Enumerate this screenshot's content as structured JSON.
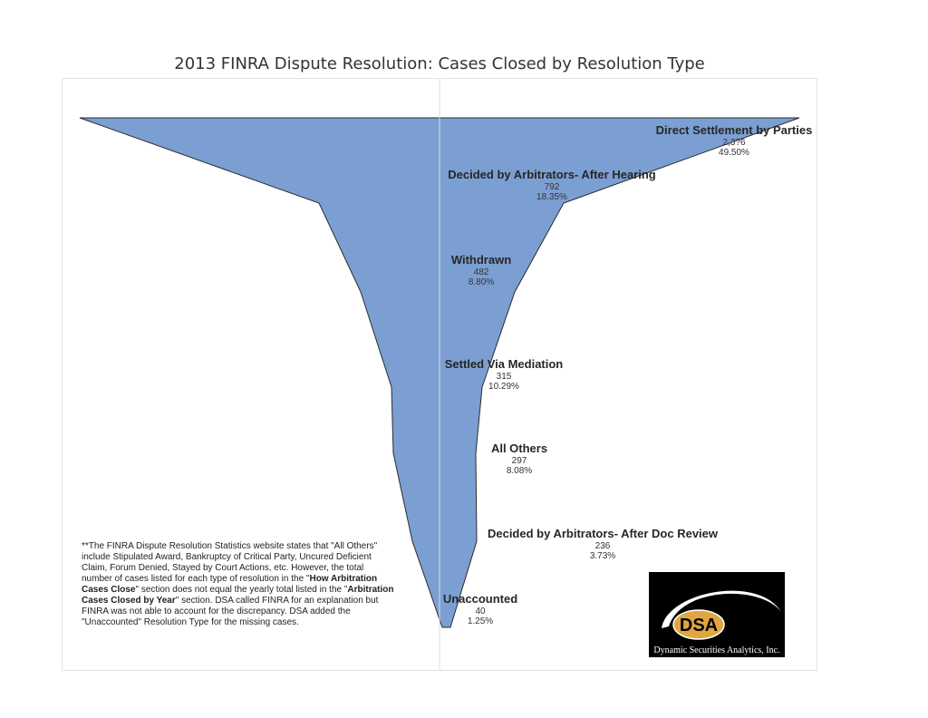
{
  "chart_data": {
    "type": "funnel",
    "title": "2013 FINRA Dispute Resolution: Cases Closed by Resolution Type",
    "stages": [
      {
        "name": "Direct Settlement by Parties",
        "count": "2,3?6",
        "percent": "49.50%",
        "share": 49.5
      },
      {
        "name": "Decided by Arbitrators- After Hearing",
        "count": "792",
        "percent": "18.35%",
        "share": 18.35
      },
      {
        "name": "Withdrawn",
        "count": "482",
        "percent": "8.80%",
        "share": 8.8
      },
      {
        "name": "Settled Via Mediation",
        "count": "315",
        "percent": "10.29%",
        "share": 10.29
      },
      {
        "name": "All Others",
        "count": "297",
        "percent": "8.08%",
        "share": 8.08
      },
      {
        "name": "Decided by Arbitrators- After Doc Review",
        "count": "236",
        "percent": "3.73%",
        "share": 3.73
      },
      {
        "name": "Unaccounted",
        "count": "40",
        "percent": "1.25%",
        "share": 1.25
      }
    ],
    "grid": false,
    "legend": "none",
    "fill_color": "#7b9fd2",
    "edge_color": "#2b2b2b"
  },
  "footnote": {
    "p1": "**The FINRA Dispute Resolution Statistics website states that \"All Others\" include Stipulated Award, Bankruptcy of Critical Party, Uncured Deficient Claim, Forum Denied, Stayed by Court Actions, etc. However, the total number of cases listed for each type of resolution in the \"",
    "b1": "How Arbitration Cases Close",
    "p2": "\" section does not equal the yearly total listed in the \"",
    "b2": "Arbitration Cases Closed by Year",
    "p3": "\" section. DSA called FINRA for an explanation but FINRA was not able to account for the discrepancy. DSA added the \"Unaccounted\" Resolution Type for the missing cases."
  },
  "logo": {
    "mark": "DSA",
    "name": "Dynamic Securities Analytics, Inc.",
    "colors": {
      "background": "#000000",
      "badge": "#e0a640",
      "ring": "#ffffff"
    }
  }
}
